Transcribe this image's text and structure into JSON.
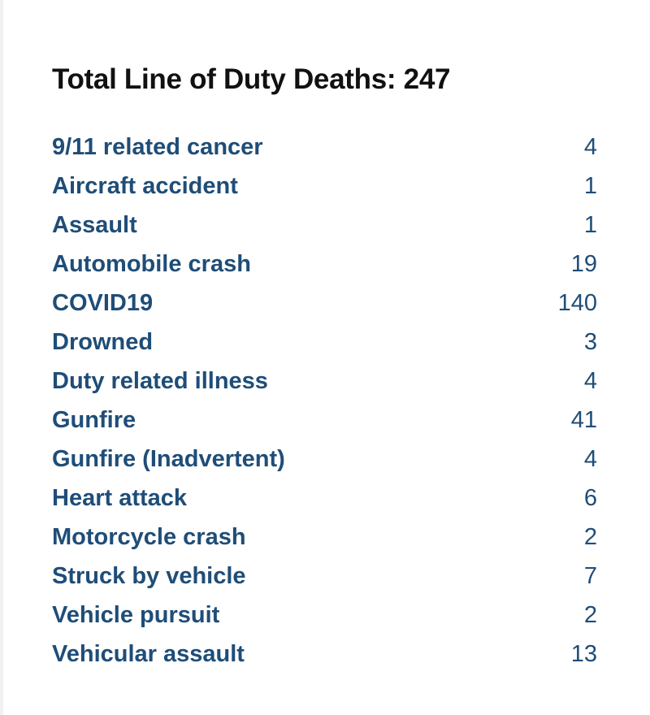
{
  "summary": {
    "title": "Total Line of Duty Deaths: 247"
  },
  "causes": [
    {
      "label": "9/11 related cancer",
      "count": "4"
    },
    {
      "label": "Aircraft accident",
      "count": "1"
    },
    {
      "label": "Assault",
      "count": "1"
    },
    {
      "label": "Automobile crash",
      "count": "19"
    },
    {
      "label": "COVID19",
      "count": "140"
    },
    {
      "label": "Drowned",
      "count": "3"
    },
    {
      "label": "Duty related illness",
      "count": "4"
    },
    {
      "label": "Gunfire",
      "count": "41"
    },
    {
      "label": "Gunfire (Inadvertent)",
      "count": "4"
    },
    {
      "label": "Heart attack",
      "count": "6"
    },
    {
      "label": "Motorcycle crash",
      "count": "2"
    },
    {
      "label": "Struck by vehicle",
      "count": "7"
    },
    {
      "label": "Vehicle pursuit",
      "count": "2"
    },
    {
      "label": "Vehicular assault",
      "count": "13"
    }
  ],
  "colors": {
    "title": "#111111",
    "link": "#1f4d78",
    "background": "#ffffff"
  }
}
